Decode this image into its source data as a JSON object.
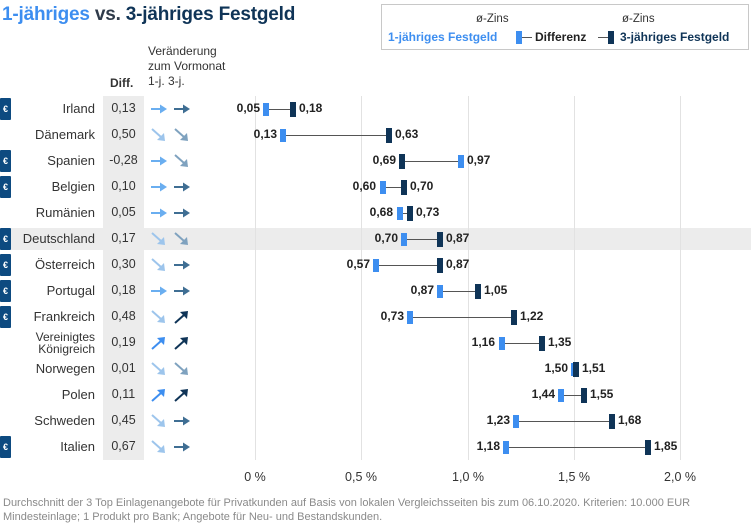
{
  "title": {
    "part1": "1-jähriges",
    "part2": " vs. ",
    "part3": "3-jähriges Festgeld"
  },
  "legend": {
    "rate_label_left": "ø-Zins",
    "rate_label_right": "ø-Zins",
    "series1": "1-jähriges Festgeld",
    "difference": "Differenz",
    "series3": "3-jähriges Festgeld"
  },
  "header": {
    "change_line1": "Veränderung",
    "change_line2": "zum Vormonat",
    "change_line3": "1-j. 3-j.",
    "diff": "Diff."
  },
  "euro_symbol": "€",
  "colors": {
    "one_year": "#3d8ef0",
    "three_year": "#0f3457",
    "arrow_flat_1y": "#6aaef0",
    "arrow_down_1y": "#9dc5ec",
    "arrow_flat_3y": "#3f6e93",
    "arrow_down_3y": "#7fa2bf"
  },
  "chart_data": {
    "type": "dumbbell",
    "xlim": [
      0,
      2.0
    ],
    "x_ticks": [
      "0 %",
      "0,5 %",
      "1,0 %",
      "1,5 %",
      "2,0 %"
    ],
    "highlight": "Deutschland",
    "rows": [
      {
        "country": "Irland",
        "euro": true,
        "diff": "0,13",
        "rate_1y": 0.05,
        "rate_3y": 0.18,
        "label_1y": "0,05",
        "label_3y": "0,18",
        "arrow_1y": "flat",
        "arrow_3y": "flat"
      },
      {
        "country": "Dänemark",
        "euro": false,
        "diff": "0,50",
        "rate_1y": 0.13,
        "rate_3y": 0.63,
        "label_1y": "0,13",
        "label_3y": "0,63",
        "arrow_1y": "down",
        "arrow_3y": "down"
      },
      {
        "country": "Spanien",
        "euro": true,
        "diff": "-0,28",
        "rate_1y": 0.97,
        "rate_3y": 0.69,
        "label_1y": "0,97",
        "label_3y": "0,69",
        "arrow_1y": "flat",
        "arrow_3y": "down"
      },
      {
        "country": "Belgien",
        "euro": true,
        "diff": "0,10",
        "rate_1y": 0.6,
        "rate_3y": 0.7,
        "label_1y": "0,60",
        "label_3y": "0,70",
        "arrow_1y": "flat",
        "arrow_3y": "flat"
      },
      {
        "country": "Rumänien",
        "euro": false,
        "diff": "0,05",
        "rate_1y": 0.68,
        "rate_3y": 0.73,
        "label_1y": "0,68",
        "label_3y": "0,73",
        "arrow_1y": "flat",
        "arrow_3y": "flat"
      },
      {
        "country": "Deutschland",
        "euro": true,
        "diff": "0,17",
        "rate_1y": 0.7,
        "rate_3y": 0.87,
        "label_1y": "0,70",
        "label_3y": "0,87",
        "arrow_1y": "down",
        "arrow_3y": "down"
      },
      {
        "country": "Österreich",
        "euro": true,
        "diff": "0,30",
        "rate_1y": 0.57,
        "rate_3y": 0.87,
        "label_1y": "0,57",
        "label_3y": "0,87",
        "arrow_1y": "down",
        "arrow_3y": "flat"
      },
      {
        "country": "Portugal",
        "euro": true,
        "diff": "0,18",
        "rate_1y": 0.87,
        "rate_3y": 1.05,
        "label_1y": "0,87",
        "label_3y": "1,05",
        "arrow_1y": "flat",
        "arrow_3y": "flat"
      },
      {
        "country": "Frankreich",
        "euro": true,
        "diff": "0,48",
        "rate_1y": 0.73,
        "rate_3y": 1.22,
        "label_1y": "0,73",
        "label_3y": "1,22",
        "arrow_1y": "down",
        "arrow_3y": "up"
      },
      {
        "country": "Vereinigtes Königreich",
        "country_line1": "Vereinigtes",
        "country_line2": "Königreich",
        "euro": false,
        "diff": "0,19",
        "rate_1y": 1.16,
        "rate_3y": 1.35,
        "label_1y": "1,16",
        "label_3y": "1,35",
        "arrow_1y": "up",
        "arrow_3y": "up"
      },
      {
        "country": "Norwegen",
        "euro": false,
        "diff": "0,01",
        "rate_1y": 1.5,
        "rate_3y": 1.51,
        "label_1y": "1,50",
        "label_3y": "1,51",
        "arrow_1y": "down",
        "arrow_3y": "down"
      },
      {
        "country": "Polen",
        "euro": false,
        "diff": "0,11",
        "rate_1y": 1.44,
        "rate_3y": 1.55,
        "label_1y": "1,44",
        "label_3y": "1,55",
        "arrow_1y": "up",
        "arrow_3y": "up"
      },
      {
        "country": "Schweden",
        "euro": false,
        "diff": "0,45",
        "rate_1y": 1.23,
        "rate_3y": 1.68,
        "label_1y": "1,23",
        "label_3y": "1,68",
        "arrow_1y": "down",
        "arrow_3y": "flat"
      },
      {
        "country": "Italien",
        "euro": true,
        "diff": "0,67",
        "rate_1y": 1.18,
        "rate_3y": 1.85,
        "label_1y": "1,18",
        "label_3y": "1,85",
        "arrow_1y": "down",
        "arrow_3y": "flat"
      }
    ]
  },
  "footnote": "Durchschnitt der 3 Top Einlagenangebote für Privatkunden auf Basis von lokalen Vergleichsseiten bis zum 06.10.2020. Kriterien: 10.000 EUR Mindesteinlage; 1 Produkt pro Bank; Angebote für Neu- und Bestandskunden."
}
